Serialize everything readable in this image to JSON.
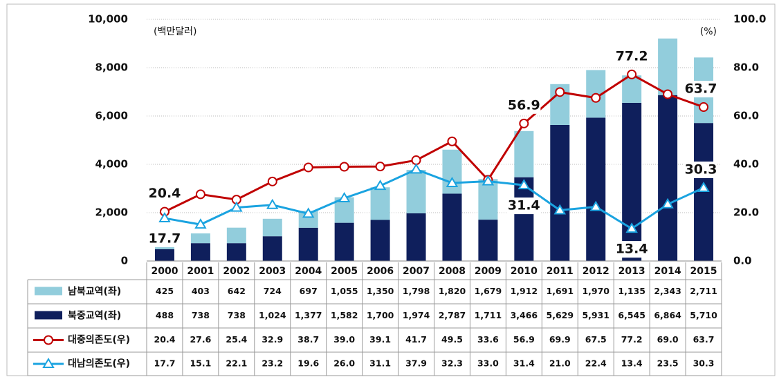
{
  "chart_data": {
    "type": "bar-line",
    "unit_left": "(백만달러)",
    "unit_right": "(%)",
    "categories": [
      "2000",
      "2001",
      "2002",
      "2003",
      "2004",
      "2005",
      "2006",
      "2007",
      "2008",
      "2009",
      "2010",
      "2011",
      "2012",
      "2013",
      "2014",
      "2015"
    ],
    "ylim": [
      0,
      10000
    ],
    "yticks": [
      0,
      {
        "value": 2000,
        "label": "2,000"
      },
      {
        "value": 4000,
        "label": "4,000"
      },
      {
        "value": 6000,
        "label": "6,000"
      },
      {
        "value": 8000,
        "label": "8,000"
      },
      {
        "value": 10000,
        "label": "10,000"
      }
    ],
    "y2lim": [
      0,
      100
    ],
    "y2ticks": [
      {
        "value": 0,
        "label": "0.0"
      },
      {
        "value": 20,
        "label": "20.0"
      },
      {
        "value": 40,
        "label": "40.0"
      },
      {
        "value": 60,
        "label": "60.0"
      },
      {
        "value": 80,
        "label": "80.0"
      },
      {
        "value": 100,
        "label": "100.0"
      }
    ],
    "grid": true,
    "series": [
      {
        "name": "남북교역(좌)",
        "type": "bar",
        "stack": "top",
        "color": "#92cddc",
        "values": [
          425,
          403,
          642,
          724,
          697,
          1055,
          1350,
          1798,
          1820,
          1679,
          1912,
          1691,
          1970,
          1135,
          2343,
          2711
        ],
        "value_labels": [
          "425",
          "403",
          "642",
          "724",
          "697",
          "1,055",
          "1,350",
          "1,798",
          "1,820",
          "1,679",
          "1,912",
          "1,691",
          "1,970",
          "1,135",
          "2,343",
          "2,711"
        ]
      },
      {
        "name": "북중교역(좌)",
        "type": "bar",
        "stack": "bottom",
        "color": "#0f1f5c",
        "values": [
          488,
          738,
          738,
          1024,
          1377,
          1582,
          1700,
          1974,
          2787,
          1711,
          3466,
          5629,
          5931,
          6545,
          6864,
          5710
        ],
        "value_labels": [
          "488",
          "738",
          "738",
          "1,024",
          "1,377",
          "1,582",
          "1,700",
          "1,974",
          "2,787",
          "1,711",
          "3,466",
          "5,629",
          "5,931",
          "6,545",
          "6,864",
          "5,710"
        ]
      },
      {
        "name": "대중의존도(우)",
        "type": "line",
        "axis": "y2",
        "marker": "circle",
        "color": "#c00000",
        "values": [
          20.4,
          27.6,
          25.4,
          32.9,
          38.7,
          39.0,
          39.1,
          41.7,
          49.5,
          33.6,
          56.9,
          69.9,
          67.5,
          77.2,
          69.0,
          63.7
        ],
        "value_labels": [
          "20.4",
          "27.6",
          "25.4",
          "32.9",
          "38.7",
          "39.0",
          "39.1",
          "41.7",
          "49.5",
          "33.6",
          "56.9",
          "69.9",
          "67.5",
          "77.2",
          "69.0",
          "63.7"
        ],
        "labeled_points": [
          0,
          10,
          13,
          15
        ]
      },
      {
        "name": "대남의존도(우)",
        "type": "line",
        "axis": "y2",
        "marker": "triangle",
        "color": "#1aa3e0",
        "values": [
          17.7,
          15.1,
          22.1,
          23.2,
          19.6,
          26.0,
          31.1,
          37.9,
          32.3,
          33.0,
          31.4,
          21.0,
          22.4,
          13.4,
          23.5,
          30.3
        ],
        "value_labels": [
          "17.7",
          "15.1",
          "22.1",
          "23.2",
          "19.6",
          "26.0",
          "31.1",
          "37.9",
          "32.3",
          "33.0",
          "31.4",
          "21.0",
          "22.4",
          "13.4",
          "23.5",
          "30.3"
        ],
        "labeled_points": [
          0,
          10,
          13,
          15
        ]
      }
    ]
  }
}
